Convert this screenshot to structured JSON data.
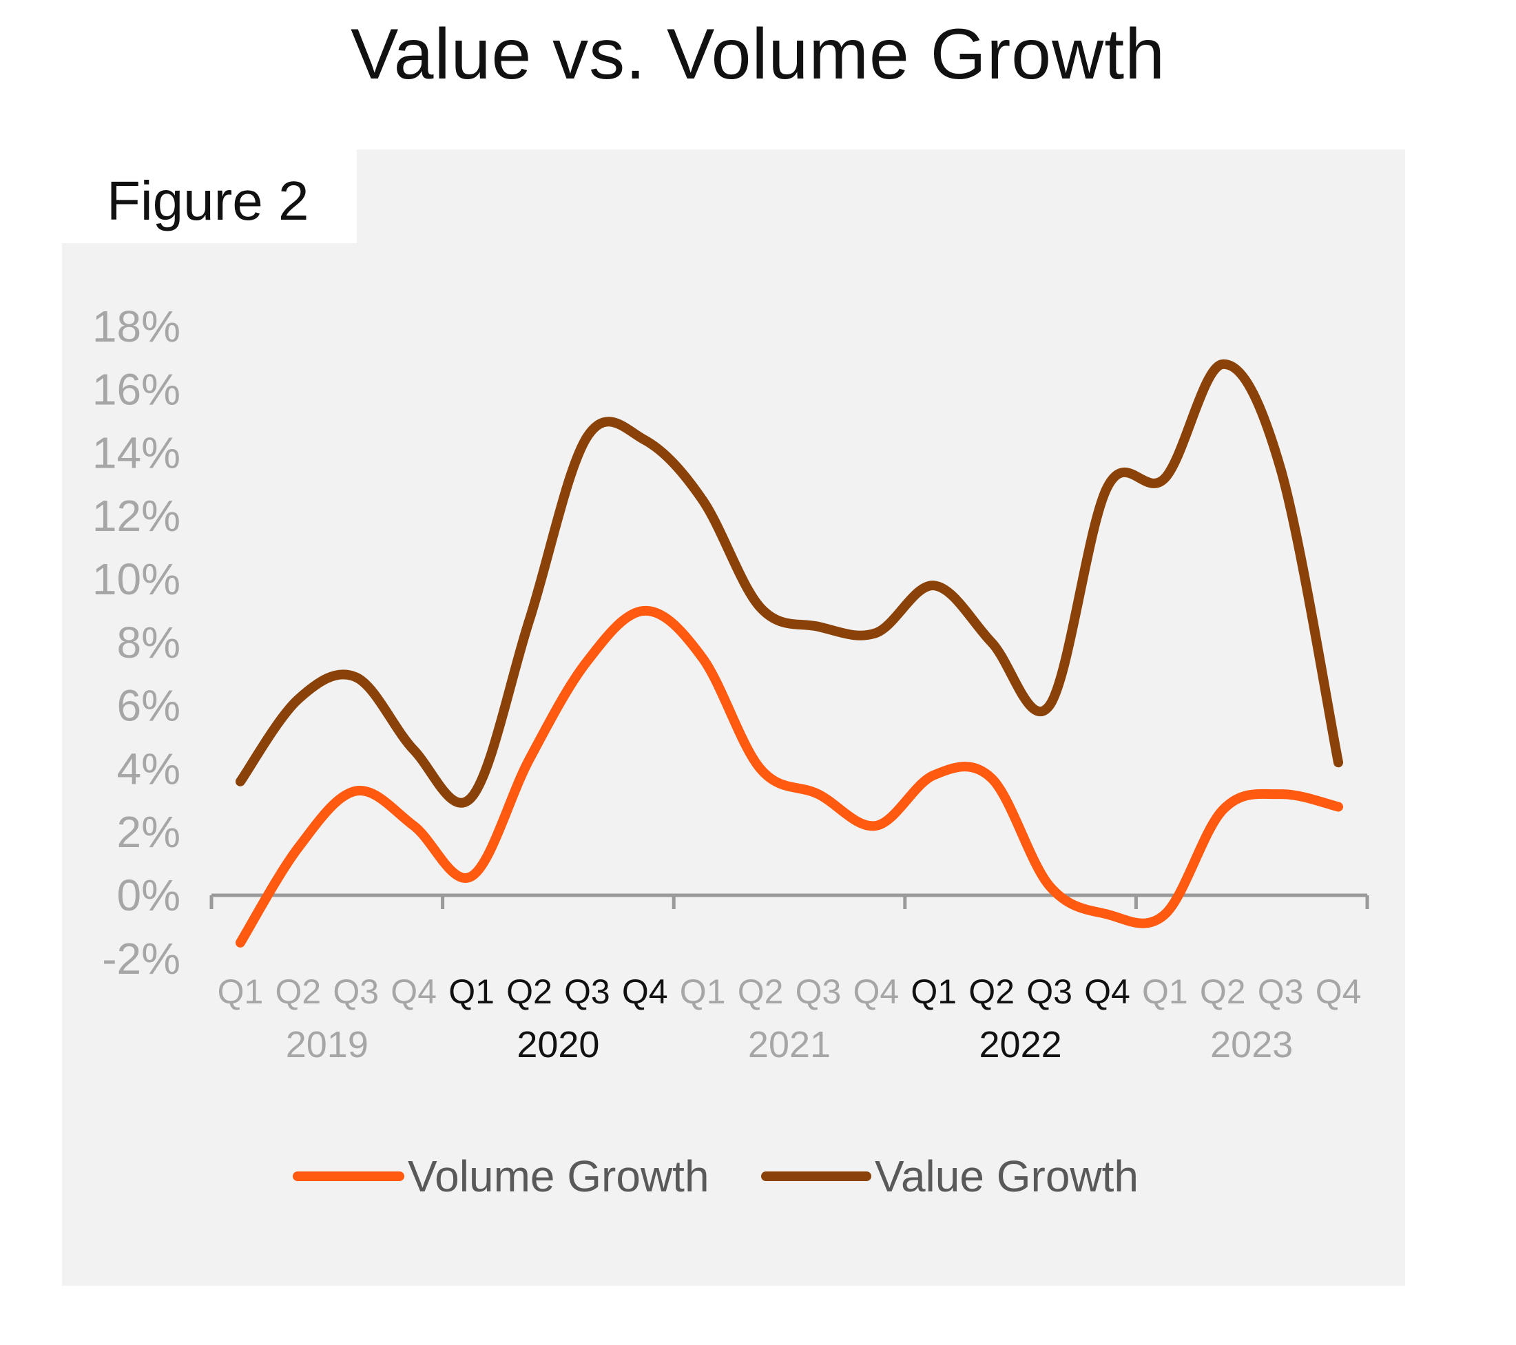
{
  "title": "Value vs. Volume Growth",
  "figure_label": "Figure 2",
  "chart_data": {
    "type": "line",
    "categories": [
      "Q1",
      "Q2",
      "Q3",
      "Q4",
      "Q1",
      "Q2",
      "Q3",
      "Q4",
      "Q1",
      "Q2",
      "Q3",
      "Q4",
      "Q1",
      "Q2",
      "Q3",
      "Q4",
      "Q1",
      "Q2",
      "Q3",
      "Q4"
    ],
    "years": [
      {
        "label": "2019",
        "highlight": false
      },
      {
        "label": "2020",
        "highlight": true
      },
      {
        "label": "2021",
        "highlight": false
      },
      {
        "label": "2022",
        "highlight": true
      },
      {
        "label": "2023",
        "highlight": false
      }
    ],
    "series": [
      {
        "name": "Volume Growth",
        "color": "#ff5a0f",
        "values": [
          -1.5,
          1.5,
          3.3,
          2.2,
          0.6,
          4.3,
          7.4,
          9.0,
          7.5,
          4.0,
          3.2,
          2.2,
          3.8,
          3.7,
          0.3,
          -0.6,
          -0.6,
          2.7,
          3.2,
          2.8
        ]
      },
      {
        "name": "Value Growth",
        "color": "#8b4208",
        "values": [
          3.6,
          6.2,
          6.9,
          4.6,
          3.1,
          8.7,
          14.5,
          14.4,
          12.5,
          9.1,
          8.5,
          8.3,
          9.8,
          8.0,
          6.0,
          12.9,
          13.2,
          16.8,
          13.5,
          4.2
        ]
      }
    ],
    "yticks": [
      "18%",
      "16%",
      "14%",
      "12%",
      "10%",
      "8%",
      "6%",
      "4%",
      "2%",
      "0%",
      "-2%"
    ],
    "ylim": [
      -2,
      18
    ],
    "xlabel": "",
    "ylabel": "",
    "legend": "bottom"
  }
}
